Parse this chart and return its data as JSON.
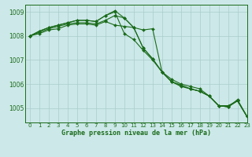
{
  "title": "Graphe pression niveau de la mer (hPa)",
  "bg_color": "#cce8e8",
  "line_color": "#1a6b1a",
  "grid_color": "#aacccc",
  "xlim": [
    -0.5,
    23
  ],
  "ylim": [
    1004.4,
    1009.3
  ],
  "yticks": [
    1005,
    1006,
    1007,
    1008,
    1009
  ],
  "xticks": [
    0,
    1,
    2,
    3,
    4,
    5,
    6,
    7,
    8,
    9,
    10,
    11,
    12,
    13,
    14,
    15,
    16,
    17,
    18,
    19,
    20,
    21,
    22,
    23
  ],
  "series": [
    [
      1008.0,
      1008.1,
      1008.25,
      1008.3,
      1008.45,
      1008.5,
      1008.5,
      1008.45,
      1008.6,
      1008.45,
      1008.4,
      1008.35,
      1008.25,
      1008.3,
      1006.5,
      1006.1,
      1005.9,
      1005.8,
      1005.7,
      1005.5,
      1005.1,
      1005.05,
      1005.3,
      1004.65
    ],
    [
      1008.0,
      1008.15,
      1008.3,
      1008.4,
      1008.5,
      1008.55,
      1008.55,
      1008.5,
      1008.65,
      1008.85,
      1008.75,
      1008.35,
      1007.5,
      1007.05,
      1006.5,
      1006.1,
      1005.95,
      1005.8,
      1005.7,
      1005.5,
      1005.1,
      1005.05,
      1005.35,
      1004.65
    ],
    [
      1008.0,
      1008.2,
      1008.35,
      1008.45,
      1008.55,
      1008.65,
      1008.65,
      1008.6,
      1008.85,
      1009.0,
      1008.1,
      1007.85,
      1007.4,
      1007.0,
      1006.5,
      1006.2,
      1006.0,
      1005.9,
      1005.8,
      1005.5,
      1005.1,
      1005.1,
      1005.3,
      1004.65
    ],
    [
      1008.0,
      1008.2,
      1008.35,
      1008.45,
      1008.55,
      1008.65,
      1008.65,
      1008.6,
      1008.85,
      1009.05,
      1008.75,
      1008.35,
      1007.5,
      1007.05,
      1006.5,
      1006.1,
      1005.95,
      1005.8,
      1005.7,
      1005.5,
      1005.1,
      1005.05,
      1005.3,
      1004.65
    ]
  ]
}
